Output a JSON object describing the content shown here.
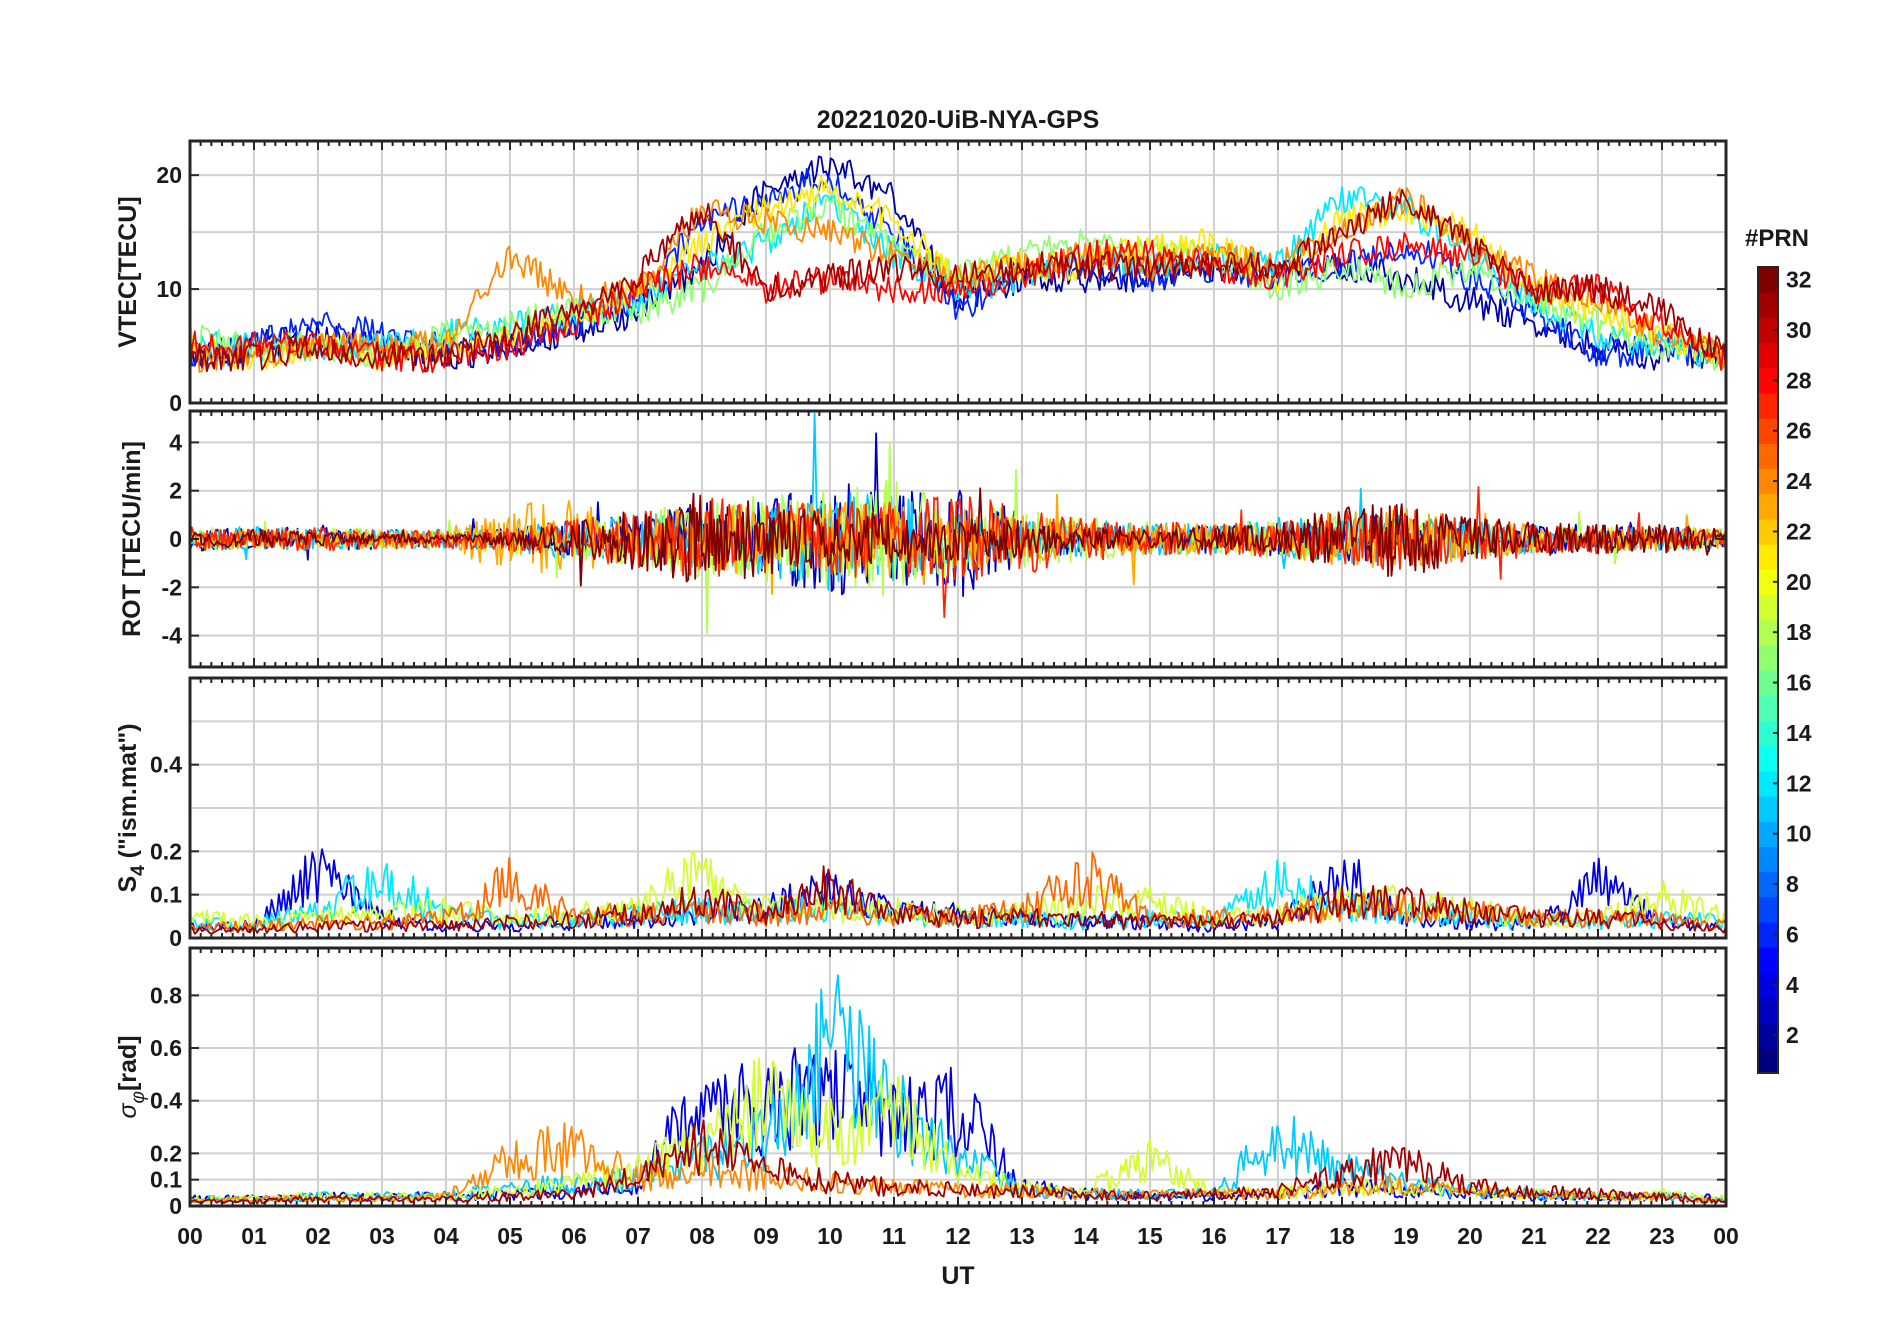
{
  "figure": {
    "title": "20221020-UiB-NYA-GPS",
    "xlabel": "UT",
    "x_ticks": [
      "00",
      "01",
      "02",
      "03",
      "04",
      "05",
      "06",
      "07",
      "08",
      "09",
      "10",
      "11",
      "12",
      "13",
      "14",
      "15",
      "16",
      "17",
      "18",
      "19",
      "20",
      "21",
      "22",
      "23",
      "00"
    ]
  },
  "colorbar": {
    "title": "#PRN",
    "ticks": [
      "2",
      "4",
      "6",
      "8",
      "10",
      "12",
      "14",
      "16",
      "18",
      "20",
      "22",
      "24",
      "26",
      "28",
      "30",
      "32"
    ],
    "range": [
      1,
      32
    ],
    "colormap": "jet"
  },
  "panels": {
    "vtec": {
      "ylabel": "VTEC[TECU]",
      "y_ticks": [
        "0",
        "10",
        "20"
      ]
    },
    "rot": {
      "ylabel": "ROT [TECU/min]",
      "y_ticks": [
        "-4",
        "-2",
        "0",
        "2",
        "4"
      ]
    },
    "s4": {
      "ylabel_main": "S",
      "ylabel_sub": "4",
      "ylabel_rest": " (\"ism.mat\")",
      "y_ticks": [
        "0",
        "0.1",
        "0.2",
        "0.4"
      ]
    },
    "sigma": {
      "ylabel_main": "σ",
      "ylabel_sub": "φ",
      "ylabel_rest": "[rad]",
      "y_ticks": [
        "0",
        "0.1",
        "0.2",
        "0.4",
        "0.6",
        "0.8"
      ]
    }
  },
  "chart_data": [
    {
      "type": "line",
      "title": "20221020-UiB-NYA-GPS",
      "xlabel": "UT",
      "ylabel": "VTEC[TECU]",
      "xlim": [
        0,
        24
      ],
      "ylim": [
        0,
        23
      ],
      "grid": true,
      "x_hours": [
        0,
        1,
        2,
        3,
        4,
        5,
        6,
        7,
        8,
        9,
        10,
        11,
        12,
        13,
        14,
        15,
        16,
        17,
        18,
        19,
        20,
        21,
        22,
        23,
        24
      ],
      "series": [
        {
          "prn": 2,
          "y": [
            4,
            5,
            6,
            5,
            4,
            5,
            6,
            8,
            12,
            19,
            21,
            18,
            9,
            11,
            11,
            11,
            12,
            12,
            12,
            11,
            9,
            7,
            5,
            4,
            4
          ]
        },
        {
          "prn": 6,
          "y": [
            4,
            5,
            7,
            6,
            5,
            5,
            7,
            9,
            16,
            18,
            20,
            15,
            8,
            12,
            12,
            11,
            12,
            11,
            12,
            14,
            11,
            8,
            4,
            5,
            4
          ]
        },
        {
          "prn": 12,
          "y": [
            5,
            5,
            5,
            5,
            6,
            7,
            8,
            9,
            12,
            14,
            18,
            13,
            10,
            11,
            13,
            12,
            13,
            12,
            18,
            17,
            13,
            9,
            6,
            5,
            4
          ]
        },
        {
          "prn": 17,
          "y": [
            6,
            5,
            5,
            4,
            6,
            7,
            8,
            8,
            10,
            15,
            17,
            14,
            11,
            13,
            14,
            13,
            13,
            10,
            12,
            10,
            12,
            9,
            7,
            5,
            4
          ]
        },
        {
          "prn": 21,
          "y": [
            5,
            4,
            5,
            4,
            5,
            6,
            7,
            10,
            14,
            17,
            19,
            16,
            11,
            12,
            12,
            14,
            14,
            11,
            16,
            17,
            15,
            10,
            8,
            6,
            4
          ]
        },
        {
          "prn": 24,
          "y": [
            4,
            4,
            5,
            5,
            5,
            13,
            9,
            10,
            17,
            16,
            15,
            13,
            11,
            12,
            13,
            12,
            13,
            12,
            15,
            18,
            14,
            11,
            9,
            6,
            4
          ]
        },
        {
          "prn": 28,
          "y": [
            5,
            5,
            5,
            4,
            4,
            5,
            7,
            10,
            12,
            10,
            11,
            10,
            10,
            11,
            13,
            13,
            12,
            11,
            13,
            14,
            13,
            10,
            10,
            7,
            4
          ]
        },
        {
          "prn": 31,
          "y": [
            4,
            4,
            5,
            4,
            4,
            6,
            8,
            11,
            17,
            10,
            11,
            12,
            11,
            12,
            12,
            12,
            12,
            12,
            15,
            18,
            14,
            10,
            10,
            8,
            4
          ]
        }
      ]
    },
    {
      "type": "line",
      "ylabel": "ROT [TECU/min]",
      "xlim": [
        0,
        24
      ],
      "ylim": [
        -5.3,
        5.3
      ],
      "grid": true,
      "x_hours": [
        0,
        1,
        2,
        3,
        4,
        5,
        6,
        7,
        8,
        9,
        10,
        11,
        12,
        13,
        14,
        15,
        16,
        17,
        18,
        19,
        20,
        21,
        22,
        23,
        24
      ],
      "series": [
        {
          "prn": 3,
          "amplitude": [
            0.5,
            0.4,
            0.6,
            0.4,
            0.3,
            0.5,
            0.8,
            1.0,
            1.5,
            1.6,
            2.5,
            1.8,
            2.5,
            1.0,
            0.6,
            0.6,
            0.6,
            0.7,
            1.0,
            0.9,
            0.7,
            0.6,
            0.6,
            0.5,
            0.5
          ]
        },
        {
          "prn": 11,
          "amplitude": [
            0.4,
            0.5,
            0.5,
            0.4,
            0.4,
            0.5,
            0.9,
            1.0,
            1.4,
            1.6,
            2.2,
            1.8,
            1.2,
            0.9,
            0.7,
            0.7,
            0.6,
            0.8,
            1.0,
            1.0,
            0.7,
            0.6,
            0.5,
            0.5,
            0.4
          ]
        },
        {
          "prn": 18,
          "amplitude": [
            0.5,
            0.4,
            0.5,
            0.4,
            0.4,
            0.6,
            0.9,
            1.1,
            1.6,
            1.8,
            2.0,
            2.5,
            1.4,
            1.2,
            1.0,
            0.7,
            0.7,
            0.8,
            1.0,
            0.9,
            0.8,
            0.6,
            0.5,
            0.5,
            0.5
          ]
        },
        {
          "prn": 23,
          "amplitude": [
            0.4,
            0.4,
            0.4,
            0.4,
            0.4,
            1.5,
            1.6,
            1.0,
            1.5,
            1.4,
            1.5,
            1.6,
            1.3,
            1.0,
            0.8,
            0.7,
            0.6,
            0.7,
            1.2,
            1.3,
            0.8,
            0.6,
            0.5,
            0.5,
            0.4
          ]
        },
        {
          "prn": 27,
          "amplitude": [
            0.5,
            0.4,
            0.5,
            0.4,
            0.4,
            0.5,
            0.8,
            1.2,
            1.8,
            1.5,
            1.6,
            1.6,
            1.8,
            1.5,
            0.9,
            0.7,
            0.7,
            0.7,
            1.2,
            1.4,
            0.9,
            0.6,
            0.6,
            0.5,
            0.5
          ]
        },
        {
          "prn": 32,
          "amplitude": [
            0.3,
            0.4,
            0.3,
            0.2,
            0.2,
            0.3,
            0.7,
            1.3,
            2.0,
            1.5,
            1.2,
            1.0,
            1.0,
            0.8,
            0.5,
            0.4,
            0.5,
            0.6,
            1.4,
            1.6,
            0.9,
            0.7,
            0.6,
            0.6,
            0.4
          ]
        }
      ]
    },
    {
      "type": "line",
      "ylabel": "S4 (\"ism.mat\")",
      "xlim": [
        0,
        24
      ],
      "ylim": [
        0,
        0.6
      ],
      "grid": true,
      "x_hours": [
        0,
        1,
        2,
        3,
        4,
        5,
        6,
        7,
        8,
        9,
        10,
        11,
        12,
        13,
        14,
        15,
        16,
        17,
        18,
        19,
        20,
        21,
        22,
        23,
        24
      ],
      "series": [
        {
          "prn": 4,
          "y": [
            0.03,
            0.03,
            0.17,
            0.05,
            0.03,
            0.03,
            0.04,
            0.05,
            0.06,
            0.08,
            0.12,
            0.07,
            0.06,
            0.05,
            0.04,
            0.04,
            0.03,
            0.04,
            0.16,
            0.06,
            0.04,
            0.03,
            0.14,
            0.04,
            0.03
          ]
        },
        {
          "prn": 12,
          "y": [
            0.04,
            0.03,
            0.08,
            0.15,
            0.06,
            0.04,
            0.05,
            0.06,
            0.07,
            0.06,
            0.08,
            0.06,
            0.05,
            0.05,
            0.04,
            0.05,
            0.04,
            0.14,
            0.08,
            0.07,
            0.05,
            0.04,
            0.04,
            0.05,
            0.04
          ]
        },
        {
          "prn": 19,
          "y": [
            0.05,
            0.04,
            0.05,
            0.06,
            0.07,
            0.05,
            0.06,
            0.07,
            0.18,
            0.07,
            0.08,
            0.07,
            0.06,
            0.06,
            0.09,
            0.09,
            0.05,
            0.06,
            0.1,
            0.09,
            0.07,
            0.05,
            0.05,
            0.1,
            0.05
          ]
        },
        {
          "prn": 25,
          "y": [
            0.03,
            0.03,
            0.04,
            0.04,
            0.05,
            0.14,
            0.06,
            0.06,
            0.07,
            0.06,
            0.07,
            0.06,
            0.05,
            0.07,
            0.16,
            0.05,
            0.05,
            0.06,
            0.08,
            0.08,
            0.07,
            0.05,
            0.05,
            0.05,
            0.03
          ]
        },
        {
          "prn": 31,
          "y": [
            0.02,
            0.02,
            0.03,
            0.03,
            0.03,
            0.04,
            0.05,
            0.06,
            0.1,
            0.06,
            0.13,
            0.06,
            0.05,
            0.05,
            0.05,
            0.04,
            0.04,
            0.05,
            0.09,
            0.09,
            0.07,
            0.05,
            0.05,
            0.04,
            0.02
          ]
        }
      ]
    },
    {
      "type": "line",
      "ylabel": "σφ[rad]",
      "xlabel": "UT",
      "xlim": [
        0,
        24
      ],
      "ylim": [
        0,
        0.98
      ],
      "grid": true,
      "x_hours": [
        0,
        1,
        2,
        3,
        4,
        5,
        6,
        7,
        8,
        9,
        10,
        11,
        12,
        13,
        14,
        15,
        16,
        17,
        18,
        19,
        20,
        21,
        22,
        23,
        24
      ],
      "series": [
        {
          "prn": 4,
          "y": [
            0.03,
            0.03,
            0.04,
            0.04,
            0.04,
            0.05,
            0.06,
            0.1,
            0.45,
            0.4,
            0.5,
            0.35,
            0.4,
            0.08,
            0.05,
            0.04,
            0.04,
            0.05,
            0.08,
            0.07,
            0.05,
            0.04,
            0.04,
            0.04,
            0.03
          ]
        },
        {
          "prn": 11,
          "y": [
            0.03,
            0.03,
            0.04,
            0.04,
            0.04,
            0.08,
            0.1,
            0.12,
            0.2,
            0.3,
            0.7,
            0.4,
            0.2,
            0.07,
            0.05,
            0.05,
            0.05,
            0.3,
            0.15,
            0.1,
            0.06,
            0.05,
            0.04,
            0.04,
            0.03
          ]
        },
        {
          "prn": 19,
          "y": [
            0.03,
            0.03,
            0.04,
            0.04,
            0.04,
            0.06,
            0.1,
            0.15,
            0.25,
            0.45,
            0.3,
            0.4,
            0.15,
            0.07,
            0.06,
            0.2,
            0.05,
            0.06,
            0.08,
            0.08,
            0.06,
            0.05,
            0.04,
            0.05,
            0.03
          ]
        },
        {
          "prn": 24,
          "y": [
            0.02,
            0.03,
            0.03,
            0.03,
            0.04,
            0.2,
            0.25,
            0.12,
            0.15,
            0.12,
            0.1,
            0.08,
            0.07,
            0.06,
            0.05,
            0.05,
            0.05,
            0.05,
            0.08,
            0.09,
            0.06,
            0.05,
            0.04,
            0.04,
            0.02
          ]
        },
        {
          "prn": 31,
          "y": [
            0.02,
            0.02,
            0.03,
            0.03,
            0.03,
            0.04,
            0.05,
            0.12,
            0.25,
            0.15,
            0.1,
            0.08,
            0.07,
            0.06,
            0.05,
            0.04,
            0.05,
            0.06,
            0.15,
            0.18,
            0.08,
            0.06,
            0.05,
            0.04,
            0.02
          ]
        }
      ]
    }
  ]
}
